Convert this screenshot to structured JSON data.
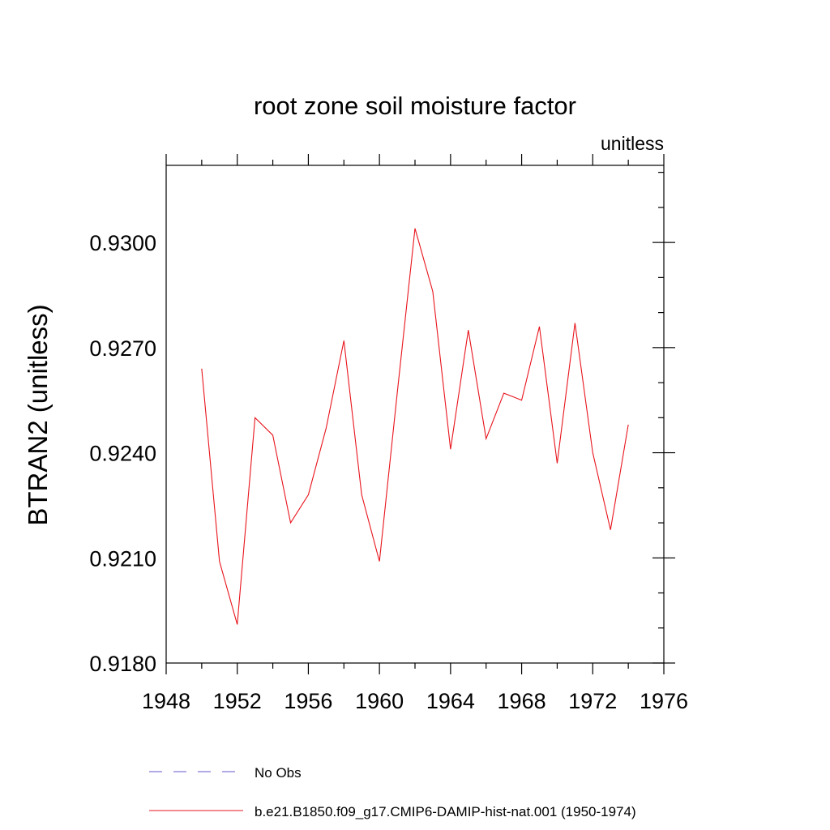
{
  "chart_data": {
    "type": "line",
    "title": "root zone soil moisture factor",
    "units_label": "unitless",
    "xlabel": "",
    "ylabel": "BTRAN2  (unitless)",
    "xlim": [
      1948,
      1976
    ],
    "ylim": [
      0.918,
      0.9322
    ],
    "x_ticks": [
      1948,
      1952,
      1956,
      1960,
      1964,
      1968,
      1972,
      1976
    ],
    "x_tick_labels": [
      "1948",
      "1952",
      "1956",
      "1960",
      "1964",
      "1968",
      "1972",
      "1976"
    ],
    "x_minor_step": 2,
    "y_ticks": [
      0.918,
      0.921,
      0.924,
      0.927,
      0.93
    ],
    "y_tick_labels": [
      "0.9180",
      "0.9210",
      "0.9240",
      "0.9270",
      "0.9300"
    ],
    "y_minor_step": 0.001,
    "grid": false,
    "legend_position": "bottom",
    "series": [
      {
        "name": "No Obs",
        "color": "#6655cc",
        "dash": "dashed",
        "x": [],
        "values": []
      },
      {
        "name": "b.e21.B1850.f09_g17.CMIP6-DAMIP-hist-nat.001 (1950-1974)",
        "color": "#e8141c",
        "dash": "solid",
        "x": [
          1950,
          1951,
          1952,
          1953,
          1954,
          1955,
          1956,
          1957,
          1958,
          1959,
          1960,
          1961,
          1962,
          1963,
          1964,
          1965,
          1966,
          1967,
          1968,
          1969,
          1970,
          1971,
          1972,
          1973,
          1974
        ],
        "values": [
          0.9264,
          0.9209,
          0.9191,
          0.925,
          0.9245,
          0.922,
          0.9228,
          0.9247,
          0.9272,
          0.9228,
          0.9209,
          0.9257,
          0.9304,
          0.9286,
          0.9241,
          0.9275,
          0.9244,
          0.9257,
          0.9255,
          0.9276,
          0.9237,
          0.9277,
          0.924,
          0.9218,
          0.9248
        ]
      }
    ]
  }
}
